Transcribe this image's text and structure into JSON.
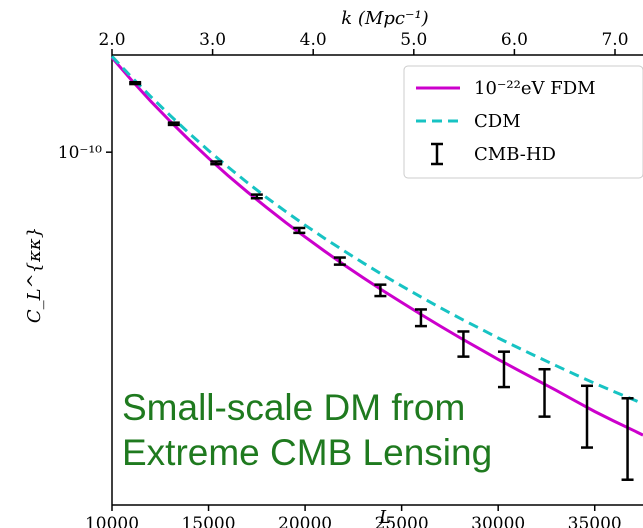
{
  "chart_data": {
    "type": "line",
    "xlabel": "L",
    "top_xlabel": "k (Mpc⁻¹)",
    "ylabel": "C_L^{κκ}",
    "xlim": [
      10000,
      37500
    ],
    "ylim": [
      1.9e-11,
      1.58e-10
    ],
    "yscale": "log",
    "x_ticks": [
      10000,
      15000,
      20000,
      25000,
      30000,
      35000
    ],
    "x_tick_labels": [
      "10000",
      "15000",
      "20000",
      "25000",
      "30000",
      "35000"
    ],
    "top_ticks": [
      2.0,
      3.0,
      4.0,
      5.0,
      6.0,
      7.0
    ],
    "top_tick_labels": [
      "2.0",
      "3.0",
      "4.0",
      "5.0",
      "6.0",
      "7.0"
    ],
    "y_ticks": [
      1e-10
    ],
    "y_tick_labels": [
      "10⁻¹⁰"
    ],
    "legend_position": "top-right",
    "grid": false,
    "series": [
      {
        "name": "10⁻²²eV FDM",
        "style": "solid",
        "color": "#cc00cc",
        "x": [
          10000,
          11000,
          12000,
          13000,
          14000,
          15000,
          16000,
          17000,
          18000,
          19000,
          20000,
          21000,
          22000,
          23000,
          24000,
          25000,
          26000,
          27000,
          28000,
          29000,
          30000,
          31000,
          32000,
          33000,
          34000,
          35000,
          36000,
          37000,
          37500
        ],
        "y": [
          1.56e-10,
          1.405e-10,
          1.272e-10,
          1.158e-10,
          1.059e-10,
          9.72e-11,
          8.96e-11,
          8.3e-11,
          7.71e-11,
          7.18e-11,
          6.71e-11,
          6.28e-11,
          5.89e-11,
          5.54e-11,
          5.22e-11,
          4.93e-11,
          4.66e-11,
          4.41e-11,
          4.18e-11,
          3.97e-11,
          3.77e-11,
          3.59e-11,
          3.42e-11,
          3.26e-11,
          3.1e-11,
          2.95e-11,
          2.82e-11,
          2.7e-11,
          2.64e-11
        ]
      },
      {
        "name": "CDM",
        "style": "dashed",
        "color": "#17c3c3",
        "x": [
          10000,
          11000,
          12000,
          13000,
          14000,
          15000,
          16000,
          17000,
          18000,
          19000,
          20000,
          21000,
          22000,
          23000,
          24000,
          25000,
          26000,
          27000,
          28000,
          29000,
          30000,
          31000,
          32000,
          33000,
          34000,
          35000,
          36000,
          37000,
          37500
        ],
        "y": [
          1.57e-10,
          1.425e-10,
          1.3e-10,
          1.19e-10,
          1.093e-10,
          1.008e-10,
          9.33e-11,
          8.67e-11,
          8.08e-11,
          7.56e-11,
          7.09e-11,
          6.67e-11,
          6.29e-11,
          5.94e-11,
          5.62e-11,
          5.33e-11,
          5.06e-11,
          4.81e-11,
          4.58e-11,
          4.37e-11,
          4.17e-11,
          3.99e-11,
          3.82e-11,
          3.66e-11,
          3.51e-11,
          3.37e-11,
          3.24e-11,
          3.12e-11,
          3.06e-11
        ]
      }
    ],
    "errorbars": {
      "name": "CMB-HD",
      "x": [
        11200,
        13200,
        15400,
        17500,
        19700,
        21800,
        23900,
        26000,
        28200,
        30300,
        32400,
        34600,
        36700
      ],
      "y": [
        1.384e-10,
        1.143e-10,
        9.51e-11,
        8.12e-11,
        6.92e-11,
        5.99e-11,
        5.22e-11,
        4.59e-11,
        4.06e-11,
        3.61e-11,
        3.24e-11,
        2.91e-11,
        2.64e-11
      ],
      "yerr": [
        6e-13,
        6e-13,
        6e-13,
        7e-13,
        8e-13,
        1e-12,
        1.4e-12,
        1.8e-12,
        2.4e-12,
        3e-12,
        3.6e-12,
        4.2e-12,
        5e-12
      ]
    },
    "annotation": [
      "Small-scale DM from",
      "Extreme CMB Lensing"
    ],
    "annotation_color": "#1f7a1f"
  }
}
